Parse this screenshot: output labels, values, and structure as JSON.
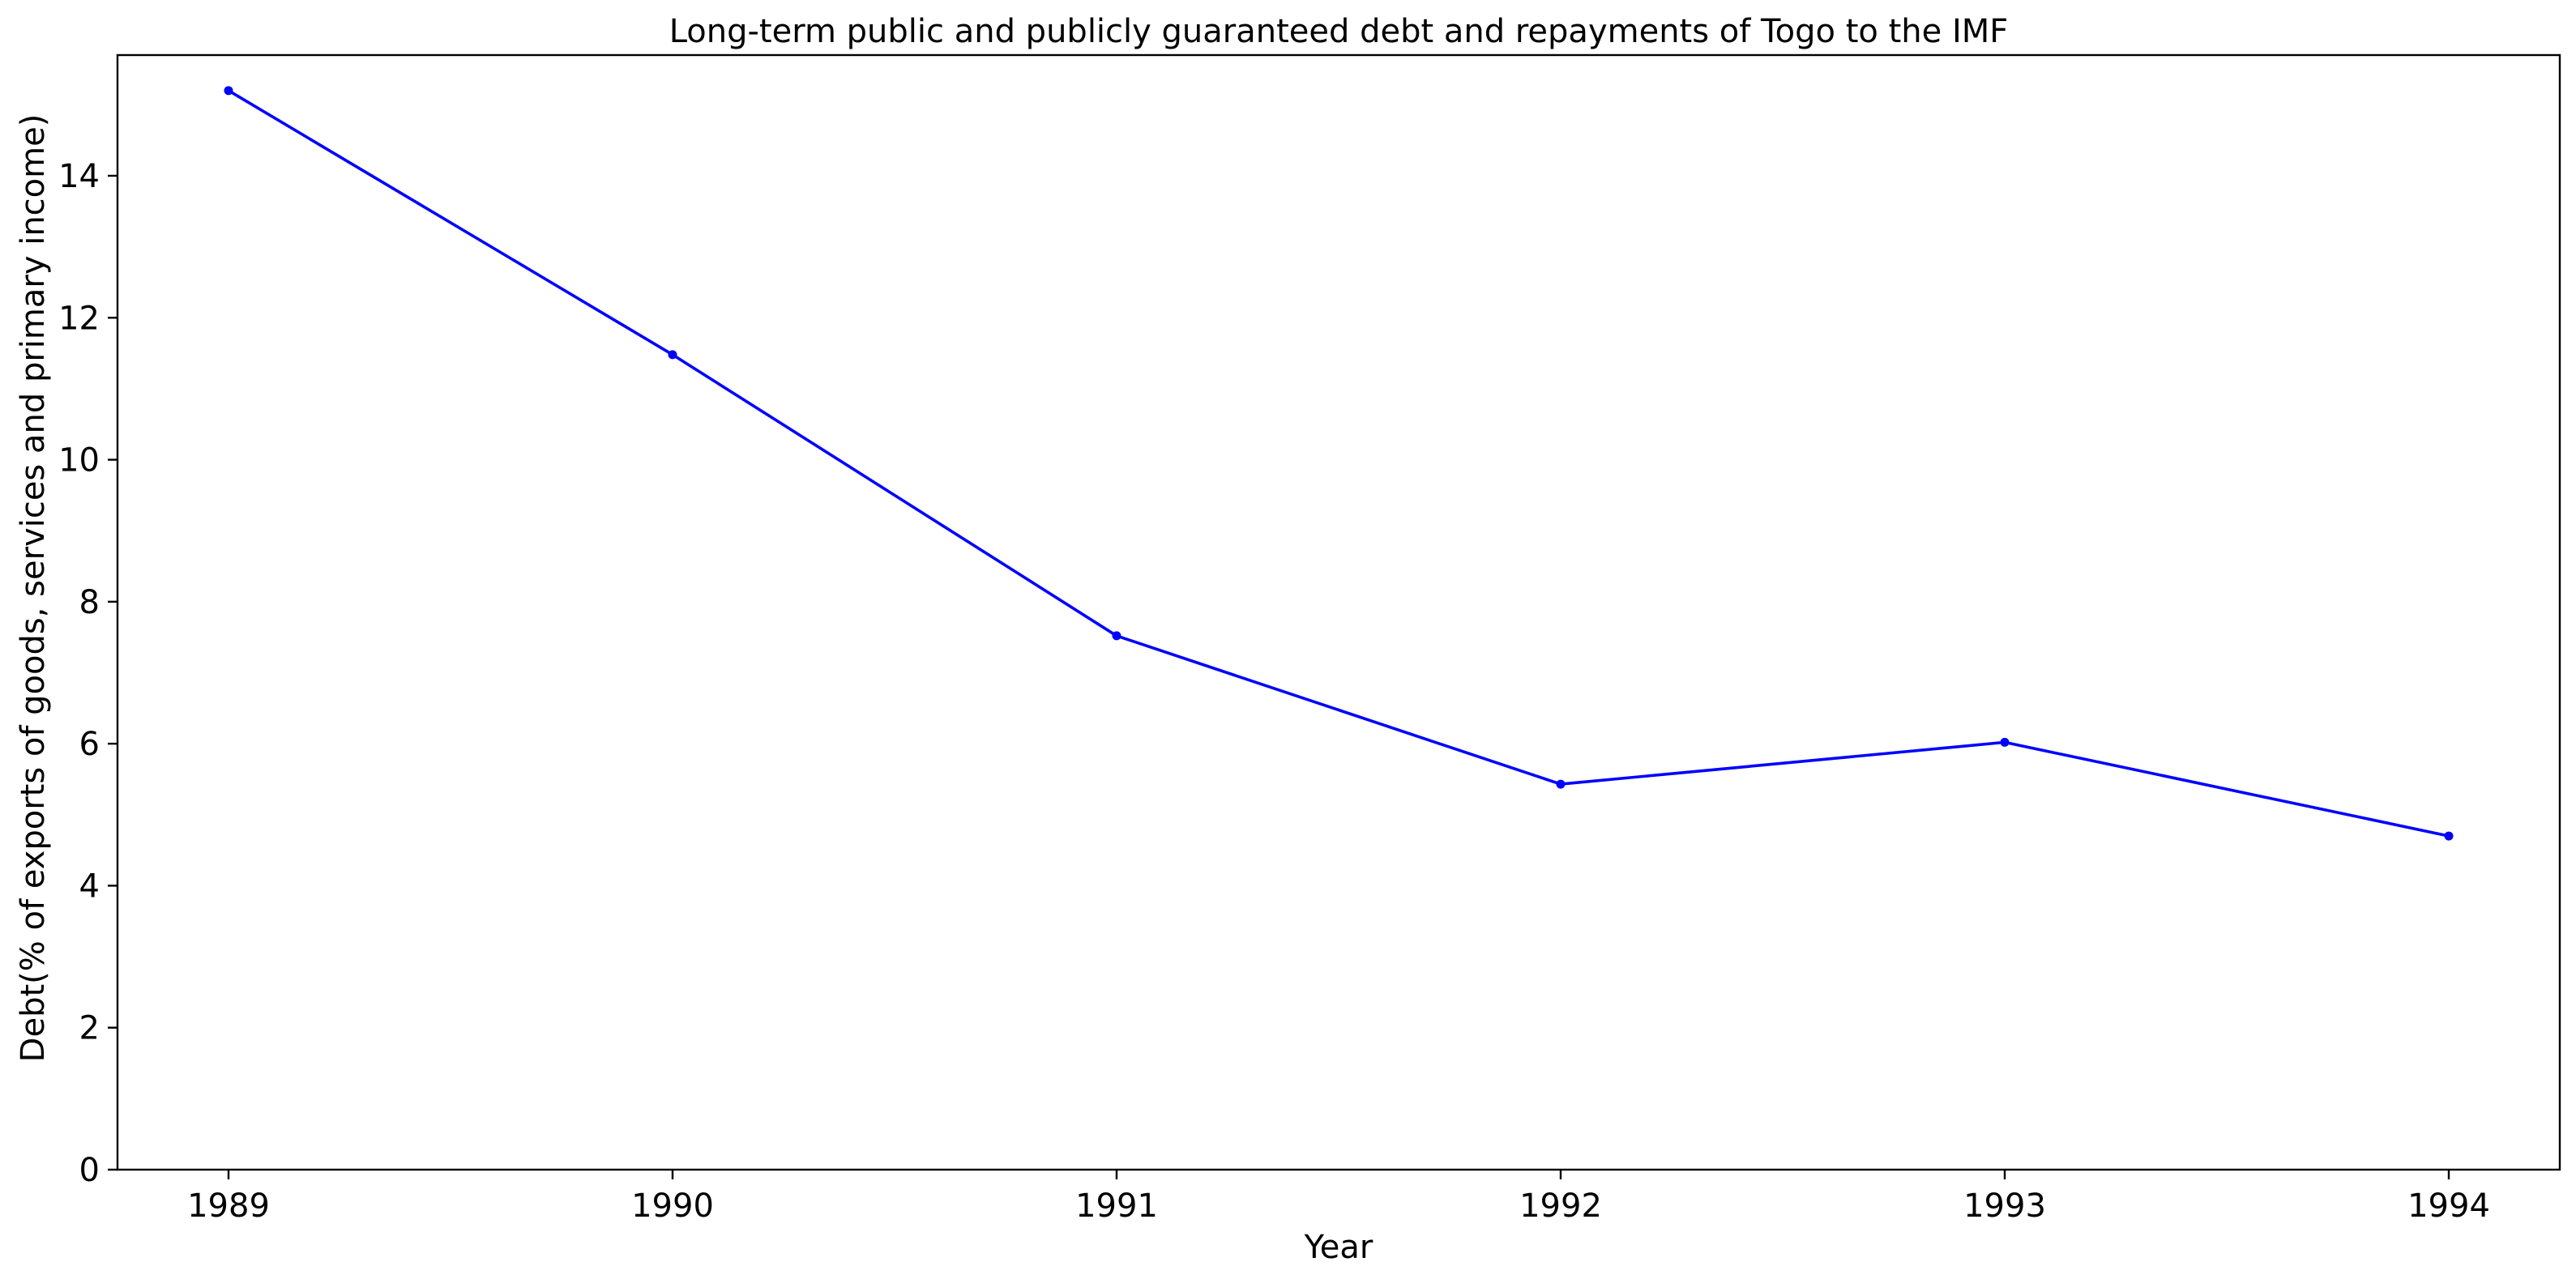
{
  "chart_data": {
    "type": "line",
    "title": "Long-term public and publicly guaranteed debt and repayments of Togo to the IMF",
    "xlabel": "Year",
    "ylabel": "Debt(% of exports of goods, services and primary income)",
    "x": [
      "1989",
      "1990",
      "1991",
      "1992",
      "1993",
      "1994"
    ],
    "y": [
      15.2,
      11.48,
      7.52,
      5.43,
      6.02,
      4.7
    ],
    "ylim": [
      0,
      15.7
    ],
    "yticks": [
      "0",
      "2",
      "4",
      "6",
      "8",
      "10",
      "12",
      "14"
    ],
    "grid": false,
    "colors": {
      "line": "#0000ff",
      "axes": "#000000",
      "background": "#ffffff"
    }
  }
}
